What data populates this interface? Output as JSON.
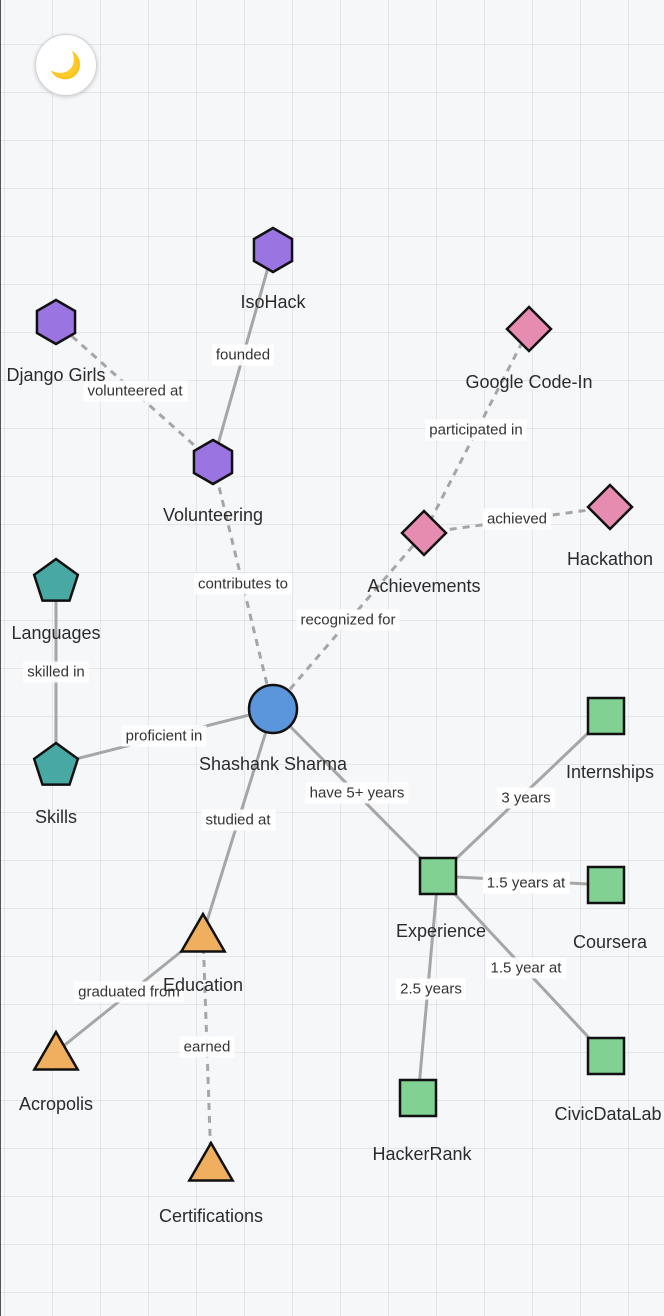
{
  "theme_toggle": {
    "icon": "moon-icon",
    "glyph": "🌙"
  },
  "colors": {
    "center": "#5b96dc",
    "volunteering": "#9a74e0",
    "achievements": "#e68cb0",
    "skills": "#47a8a4",
    "experience": "#80d192",
    "education": "#f0af5e",
    "edge": "#a6a6a6"
  },
  "nodes": [
    {
      "id": "shashank",
      "label": "Shashank Sharma",
      "shape": "circle",
      "group": "center"
    },
    {
      "id": "volunteering",
      "label": "Volunteering",
      "shape": "hexagon",
      "group": "volunteering"
    },
    {
      "id": "isohack",
      "label": "IsoHack",
      "shape": "hexagon",
      "group": "volunteering"
    },
    {
      "id": "djangogirls",
      "label": "Django Girls",
      "shape": "hexagon",
      "group": "volunteering"
    },
    {
      "id": "achievements",
      "label": "Achievements",
      "shape": "diamond",
      "group": "achievements"
    },
    {
      "id": "googlecodein",
      "label": "Google Code-In",
      "shape": "diamond",
      "group": "achievements"
    },
    {
      "id": "hackathon",
      "label": "Hackathon",
      "shape": "diamond",
      "group": "achievements"
    },
    {
      "id": "languages",
      "label": "Languages",
      "shape": "pentagon",
      "group": "skills"
    },
    {
      "id": "skills",
      "label": "Skills",
      "shape": "pentagon",
      "group": "skills"
    },
    {
      "id": "experience",
      "label": "Experience",
      "shape": "square",
      "group": "experience"
    },
    {
      "id": "internships",
      "label": "Internships",
      "shape": "square",
      "group": "experience"
    },
    {
      "id": "coursera",
      "label": "Coursera",
      "shape": "square",
      "group": "experience"
    },
    {
      "id": "civicdatalab",
      "label": "CivicDataLab",
      "shape": "square",
      "group": "experience"
    },
    {
      "id": "hackerrank",
      "label": "HackerRank",
      "shape": "square",
      "group": "experience"
    },
    {
      "id": "education",
      "label": "Education",
      "shape": "triangle",
      "group": "education"
    },
    {
      "id": "acropolis",
      "label": "Acropolis",
      "shape": "triangle",
      "group": "education"
    },
    {
      "id": "certifications",
      "label": "Certifications",
      "shape": "triangle",
      "group": "education"
    }
  ],
  "edges": [
    {
      "from": "shashank",
      "to": "volunteering",
      "label": "contributes to",
      "dashed": true
    },
    {
      "from": "volunteering",
      "to": "isohack",
      "label": "founded",
      "dashed": false
    },
    {
      "from": "volunteering",
      "to": "djangogirls",
      "label": "volunteered at",
      "dashed": true
    },
    {
      "from": "shashank",
      "to": "achievements",
      "label": "recognized for",
      "dashed": true
    },
    {
      "from": "achievements",
      "to": "googlecodein",
      "label": "participated in",
      "dashed": true
    },
    {
      "from": "achievements",
      "to": "hackathon",
      "label": "achieved",
      "dashed": true
    },
    {
      "from": "shashank",
      "to": "skills",
      "label": "proficient in",
      "dashed": false
    },
    {
      "from": "skills",
      "to": "languages",
      "label": "skilled in",
      "dashed": false
    },
    {
      "from": "shashank",
      "to": "experience",
      "label": "have 5+ years",
      "dashed": false
    },
    {
      "from": "experience",
      "to": "internships",
      "label": "3 years",
      "dashed": false
    },
    {
      "from": "experience",
      "to": "coursera",
      "label": "1.5 years at",
      "dashed": false
    },
    {
      "from": "experience",
      "to": "civicdatalab",
      "label": "1.5 year at",
      "dashed": false
    },
    {
      "from": "experience",
      "to": "hackerrank",
      "label": "2.5 years",
      "dashed": false
    },
    {
      "from": "shashank",
      "to": "education",
      "label": "studied at",
      "dashed": false
    },
    {
      "from": "education",
      "to": "acropolis",
      "label": "graduated from",
      "dashed": false
    },
    {
      "from": "education",
      "to": "certifications",
      "label": "earned",
      "dashed": true
    }
  ]
}
